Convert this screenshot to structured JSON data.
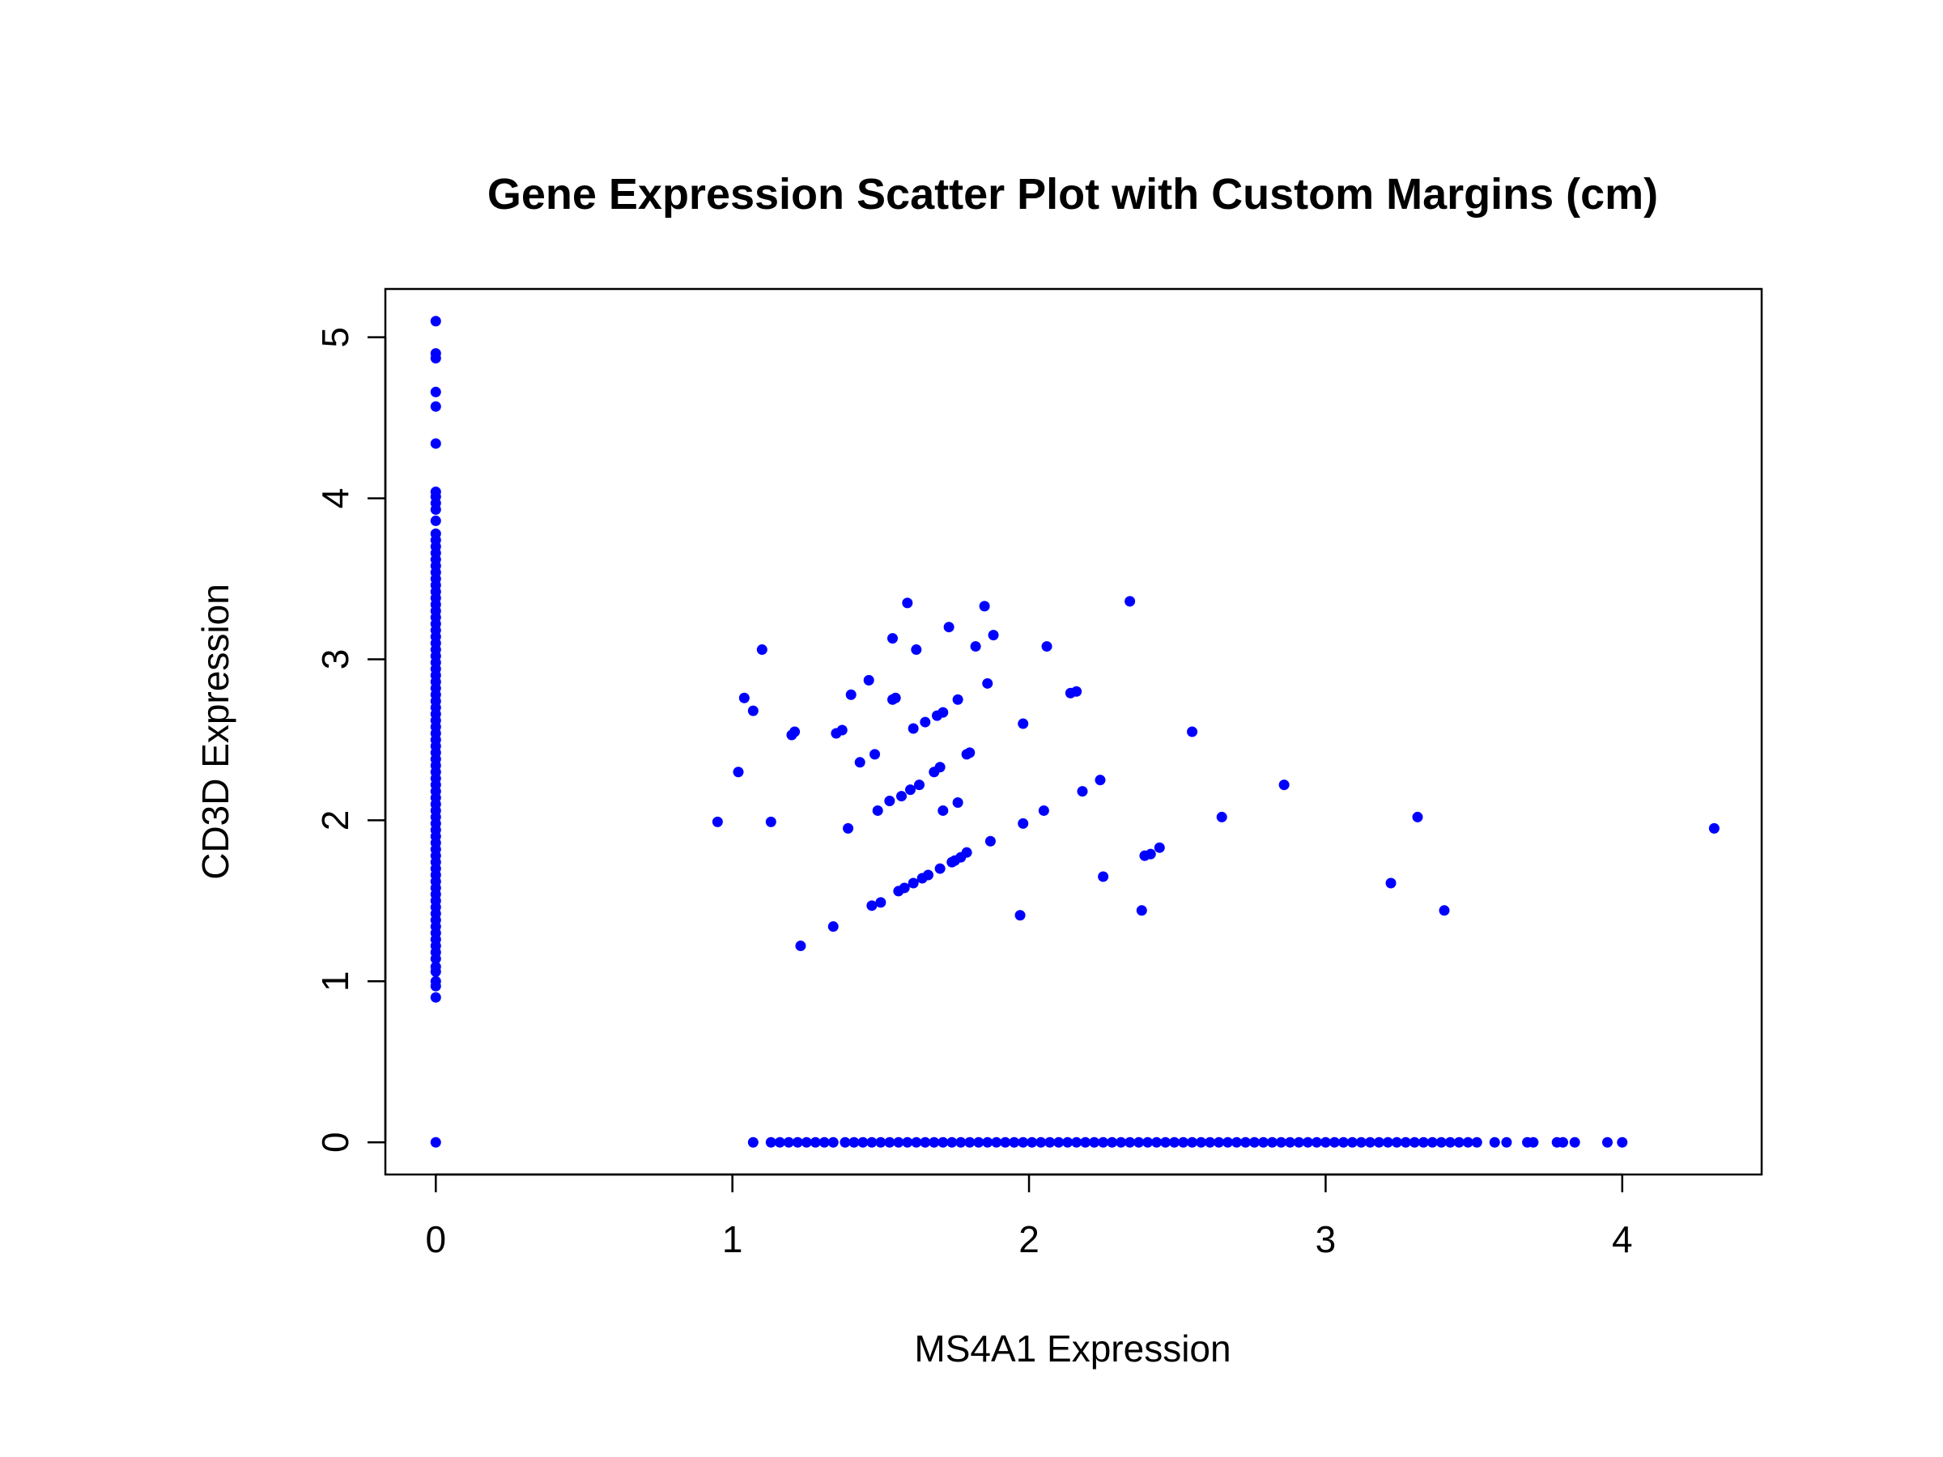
{
  "chart_data": {
    "type": "scatter",
    "title": "Gene Expression Scatter Plot with Custom Margins (cm)",
    "xlabel": "MS4A1 Expression",
    "ylabel": "CD3D Expression",
    "xlim": [
      -0.17,
      4.47
    ],
    "ylim": [
      -0.2,
      5.3
    ],
    "x_ticks": [
      0,
      1,
      2,
      3,
      4
    ],
    "y_ticks": [
      0,
      1,
      2,
      3,
      4,
      5
    ],
    "grid": false,
    "legend": "none",
    "point_color": "#0000ff",
    "points": [
      [
        0,
        5.1
      ],
      [
        0,
        4.9
      ],
      [
        0,
        4.87
      ],
      [
        0,
        4.66
      ],
      [
        0,
        4.57
      ],
      [
        0,
        4.34
      ],
      [
        0,
        4.04
      ],
      [
        0,
        4.01
      ],
      [
        0,
        3.97
      ],
      [
        0,
        3.93
      ],
      [
        0,
        3.86
      ],
      [
        0,
        3.78
      ],
      [
        0,
        3.74
      ],
      [
        0,
        3.7
      ],
      [
        0,
        3.66
      ],
      [
        0,
        3.62
      ],
      [
        0,
        3.58
      ],
      [
        0,
        3.54
      ],
      [
        0,
        3.5
      ],
      [
        0,
        3.46
      ],
      [
        0,
        3.42
      ],
      [
        0,
        3.38
      ],
      [
        0,
        3.34
      ],
      [
        0,
        3.3
      ],
      [
        0,
        3.26
      ],
      [
        0,
        3.22
      ],
      [
        0,
        3.18
      ],
      [
        0,
        3.14
      ],
      [
        0,
        3.1
      ],
      [
        0,
        3.06
      ],
      [
        0,
        3.02
      ],
      [
        0,
        2.98
      ],
      [
        0,
        2.94
      ],
      [
        0,
        2.9
      ],
      [
        0,
        2.86
      ],
      [
        0,
        2.82
      ],
      [
        0,
        2.78
      ],
      [
        0,
        2.74
      ],
      [
        0,
        2.7
      ],
      [
        0,
        2.66
      ],
      [
        0,
        2.62
      ],
      [
        0,
        2.58
      ],
      [
        0,
        2.54
      ],
      [
        0,
        2.5
      ],
      [
        0,
        2.46
      ],
      [
        0,
        2.42
      ],
      [
        0,
        2.38
      ],
      [
        0,
        2.34
      ],
      [
        0,
        2.3
      ],
      [
        0,
        2.26
      ],
      [
        0,
        2.22
      ],
      [
        0,
        2.18
      ],
      [
        0,
        2.14
      ],
      [
        0,
        2.1
      ],
      [
        0,
        2.06
      ],
      [
        0,
        2.02
      ],
      [
        0,
        1.98
      ],
      [
        0,
        1.94
      ],
      [
        0,
        1.9
      ],
      [
        0,
        1.86
      ],
      [
        0,
        1.82
      ],
      [
        0,
        1.78
      ],
      [
        0,
        1.74
      ],
      [
        0,
        1.7
      ],
      [
        0,
        1.66
      ],
      [
        0,
        1.62
      ],
      [
        0,
        1.58
      ],
      [
        0,
        1.54
      ],
      [
        0,
        1.5
      ],
      [
        0,
        1.46
      ],
      [
        0,
        1.42
      ],
      [
        0,
        1.38
      ],
      [
        0,
        1.34
      ],
      [
        0,
        1.3
      ],
      [
        0,
        1.26
      ],
      [
        0,
        1.22
      ],
      [
        0,
        1.18
      ],
      [
        0,
        1.14
      ],
      [
        0,
        1.09
      ],
      [
        0,
        1.06
      ],
      [
        0,
        1.0
      ],
      [
        0,
        0.97
      ],
      [
        0,
        0.9
      ],
      [
        0,
        0
      ],
      [
        0.95,
        1.99
      ],
      [
        1.02,
        2.3
      ],
      [
        1.04,
        2.76
      ],
      [
        1.07,
        2.68
      ],
      [
        1.1,
        3.06
      ],
      [
        1.13,
        1.99
      ],
      [
        1.2,
        2.53
      ],
      [
        1.21,
        2.55
      ],
      [
        1.23,
        1.22
      ],
      [
        1.34,
        1.34
      ],
      [
        1.35,
        2.54
      ],
      [
        1.37,
        2.56
      ],
      [
        1.39,
        1.95
      ],
      [
        1.4,
        2.78
      ],
      [
        1.43,
        2.36
      ],
      [
        1.46,
        2.87
      ],
      [
        1.47,
        1.47
      ],
      [
        1.48,
        2.41
      ],
      [
        1.49,
        2.06
      ],
      [
        1.5,
        1.49
      ],
      [
        1.53,
        2.12
      ],
      [
        1.54,
        3.13
      ],
      [
        1.54,
        2.75
      ],
      [
        1.55,
        2.76
      ],
      [
        1.56,
        1.56
      ],
      [
        1.57,
        2.15
      ],
      [
        1.58,
        1.58
      ],
      [
        1.59,
        3.35
      ],
      [
        1.6,
        2.19
      ],
      [
        1.61,
        1.61
      ],
      [
        1.61,
        2.57
      ],
      [
        1.62,
        3.06
      ],
      [
        1.63,
        2.22
      ],
      [
        1.64,
        1.64
      ],
      [
        1.65,
        2.61
      ],
      [
        1.66,
        1.66
      ],
      [
        1.68,
        2.3
      ],
      [
        1.69,
        2.65
      ],
      [
        1.7,
        1.7
      ],
      [
        1.7,
        2.33
      ],
      [
        1.71,
        2.67
      ],
      [
        1.71,
        2.06
      ],
      [
        1.73,
        3.2
      ],
      [
        1.74,
        1.74
      ],
      [
        1.75,
        1.75
      ],
      [
        1.76,
        2.11
      ],
      [
        1.76,
        2.75
      ],
      [
        1.77,
        1.77
      ],
      [
        1.79,
        1.8
      ],
      [
        1.79,
        2.41
      ],
      [
        1.8,
        2.42
      ],
      [
        1.82,
        3.08
      ],
      [
        1.85,
        3.33
      ],
      [
        1.86,
        2.85
      ],
      [
        1.87,
        1.87
      ],
      [
        1.88,
        3.15
      ],
      [
        1.97,
        1.41
      ],
      [
        1.98,
        1.98
      ],
      [
        1.98,
        2.6
      ],
      [
        2.05,
        2.06
      ],
      [
        2.06,
        3.08
      ],
      [
        2.14,
        2.79
      ],
      [
        2.16,
        2.8
      ],
      [
        2.18,
        2.18
      ],
      [
        2.24,
        2.25
      ],
      [
        2.25,
        1.65
      ],
      [
        2.34,
        3.36
      ],
      [
        2.38,
        1.44
      ],
      [
        2.39,
        1.78
      ],
      [
        2.41,
        1.79
      ],
      [
        2.44,
        1.83
      ],
      [
        2.55,
        2.55
      ],
      [
        2.65,
        2.02
      ],
      [
        2.86,
        2.22
      ],
      [
        3.22,
        1.61
      ],
      [
        3.31,
        2.02
      ],
      [
        3.4,
        1.44
      ],
      [
        4.31,
        1.95
      ],
      [
        1.07,
        0
      ],
      [
        1.13,
        0
      ],
      [
        1.16,
        0
      ],
      [
        1.19,
        0
      ],
      [
        1.22,
        0
      ],
      [
        1.25,
        0
      ],
      [
        1.28,
        0
      ],
      [
        1.31,
        0
      ],
      [
        1.34,
        0
      ],
      [
        1.38,
        0
      ],
      [
        1.41,
        0
      ],
      [
        1.44,
        0
      ],
      [
        1.47,
        0
      ],
      [
        1.5,
        0
      ],
      [
        1.53,
        0
      ],
      [
        1.56,
        0
      ],
      [
        1.59,
        0
      ],
      [
        1.62,
        0
      ],
      [
        1.65,
        0
      ],
      [
        1.68,
        0
      ],
      [
        1.71,
        0
      ],
      [
        1.74,
        0
      ],
      [
        1.77,
        0
      ],
      [
        1.8,
        0
      ],
      [
        1.83,
        0
      ],
      [
        1.86,
        0
      ],
      [
        1.89,
        0
      ],
      [
        1.92,
        0
      ],
      [
        1.95,
        0
      ],
      [
        1.98,
        0
      ],
      [
        2.01,
        0
      ],
      [
        2.04,
        0
      ],
      [
        2.07,
        0
      ],
      [
        2.1,
        0
      ],
      [
        2.13,
        0
      ],
      [
        2.16,
        0
      ],
      [
        2.19,
        0
      ],
      [
        2.22,
        0
      ],
      [
        2.25,
        0
      ],
      [
        2.28,
        0
      ],
      [
        2.31,
        0
      ],
      [
        2.34,
        0
      ],
      [
        2.37,
        0
      ],
      [
        2.4,
        0
      ],
      [
        2.43,
        0
      ],
      [
        2.46,
        0
      ],
      [
        2.49,
        0
      ],
      [
        2.52,
        0
      ],
      [
        2.55,
        0
      ],
      [
        2.58,
        0
      ],
      [
        2.61,
        0
      ],
      [
        2.64,
        0
      ],
      [
        2.67,
        0
      ],
      [
        2.7,
        0
      ],
      [
        2.73,
        0
      ],
      [
        2.76,
        0
      ],
      [
        2.79,
        0
      ],
      [
        2.82,
        0
      ],
      [
        2.85,
        0
      ],
      [
        2.88,
        0
      ],
      [
        2.91,
        0
      ],
      [
        2.94,
        0
      ],
      [
        2.97,
        0
      ],
      [
        3.0,
        0
      ],
      [
        3.03,
        0
      ],
      [
        3.06,
        0
      ],
      [
        3.09,
        0
      ],
      [
        3.12,
        0
      ],
      [
        3.15,
        0
      ],
      [
        3.18,
        0
      ],
      [
        3.21,
        0
      ],
      [
        3.24,
        0
      ],
      [
        3.27,
        0
      ],
      [
        3.3,
        0
      ],
      [
        3.33,
        0
      ],
      [
        3.36,
        0
      ],
      [
        3.39,
        0
      ],
      [
        3.42,
        0
      ],
      [
        3.45,
        0
      ],
      [
        3.48,
        0
      ],
      [
        3.51,
        0
      ],
      [
        3.57,
        0
      ],
      [
        3.61,
        0
      ],
      [
        3.68,
        0
      ],
      [
        3.7,
        0
      ],
      [
        3.78,
        0
      ],
      [
        3.8,
        0
      ],
      [
        3.84,
        0
      ],
      [
        3.95,
        0
      ],
      [
        4.0,
        0
      ]
    ]
  }
}
